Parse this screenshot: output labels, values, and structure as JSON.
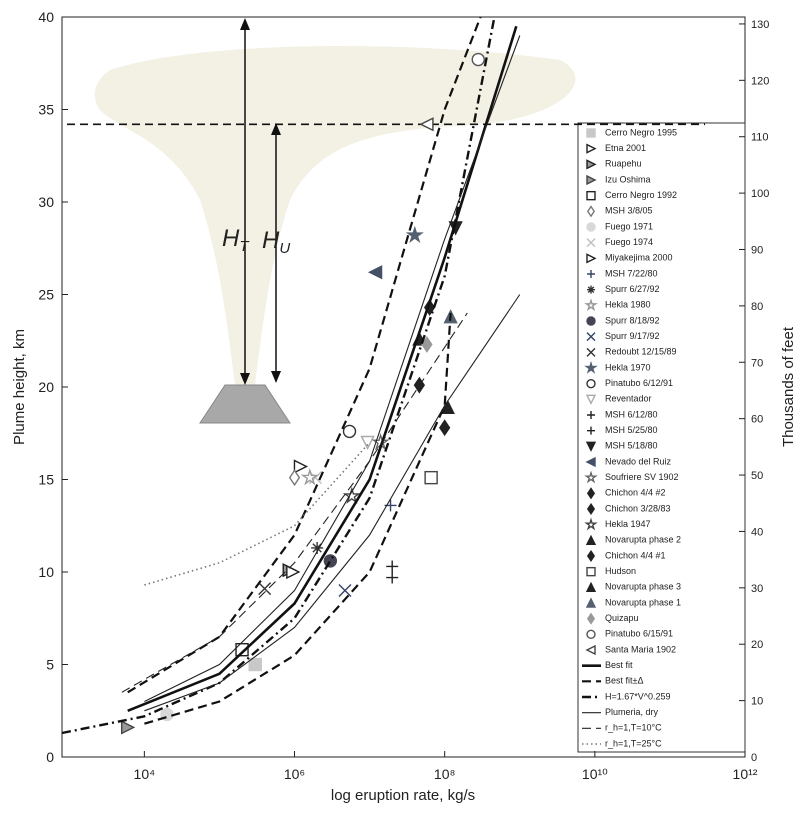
{
  "chart_data": {
    "type": "scatter",
    "x_label": "log eruption rate, kg/s",
    "y_label": "Plume height, km",
    "y2_label": "Thousands of feet",
    "log_x": true,
    "grid": false,
    "xlim": [
      800,
      1000000000000
    ],
    "xticks": [
      {
        "value": 10000,
        "label": "10⁴"
      },
      {
        "value": 1000000,
        "label": "10⁶"
      },
      {
        "value": 100000000,
        "label": "10⁸"
      },
      {
        "value": 10000000000,
        "label": "10¹⁰"
      },
      {
        "value": 1000000000000,
        "label": "10¹²"
      }
    ],
    "ylim": [
      0,
      40
    ],
    "yticks": [
      0,
      5,
      10,
      15,
      20,
      25,
      30,
      35,
      40
    ],
    "y2lim": [
      0,
      131.23
    ],
    "y2ticks": [
      0,
      10,
      20,
      30,
      40,
      50,
      60,
      70,
      80,
      90,
      100,
      110,
      120,
      130
    ],
    "hline": 34.2,
    "annotations": [
      {
        "text": "H",
        "sub": "T"
      },
      {
        "text": "H",
        "sub": "U"
      }
    ],
    "legend_position": "right",
    "series": [
      {
        "name": "Cerro Negro 1995",
        "marker": "square",
        "fill": "filled",
        "color": "#c8c8c8",
        "x": [
          300000
        ],
        "values": [
          5.0
        ]
      },
      {
        "name": "Etna 2001",
        "marker": "tri-right",
        "fill": "open",
        "color": "#222222",
        "x": [
          1200000
        ],
        "values": [
          15.7
        ]
      },
      {
        "name": "Ruapehu",
        "marker": "tri-right",
        "fill": "half",
        "color": "#222222",
        "x": [
          850000
        ],
        "values": [
          10.1
        ]
      },
      {
        "name": "Izu Oshima",
        "marker": "tri-right",
        "fill": "half",
        "color": "#444444",
        "x": [
          6000
        ],
        "values": [
          1.6
        ]
      },
      {
        "name": "Cerro Negro 1992",
        "marker": "square",
        "fill": "open",
        "color": "#222222",
        "x": [
          200000
        ],
        "values": [
          5.8
        ]
      },
      {
        "name": "MSH 3/8/05",
        "marker": "diamond",
        "fill": "open",
        "color": "#777777",
        "x": [
          1000000
        ],
        "values": [
          15.1
        ]
      },
      {
        "name": "Fuego 1971",
        "marker": "circle",
        "fill": "filled",
        "color": "#d8d8d8",
        "x": [
          20000
        ],
        "values": [
          2.3
        ]
      },
      {
        "name": "Fuego 1974",
        "marker": "x",
        "fill": "open",
        "color": "#c0c0c0",
        "x": [
          1900000
        ],
        "values": [
          15.1
        ]
      },
      {
        "name": "Miyakejima 2000",
        "marker": "tri-right",
        "fill": "open",
        "color": "#222222",
        "x": [
          950000
        ],
        "values": [
          10.0
        ]
      },
      {
        "name": "MSH 7/22/80",
        "marker": "plus",
        "fill": "open",
        "color": "#334466",
        "x": [
          19000000
        ],
        "values": [
          13.6
        ]
      },
      {
        "name": "Spurr 6/27/92",
        "marker": "asterisk",
        "fill": "open",
        "color": "#333333",
        "x": [
          2000000
        ],
        "values": [
          11.3
        ]
      },
      {
        "name": "Hekla 1980",
        "marker": "star",
        "fill": "open",
        "color": "#999999",
        "x": [
          1600000
        ],
        "values": [
          15.1
        ]
      },
      {
        "name": "Spurr 8/18/92",
        "marker": "circle",
        "fill": "filled",
        "color": "#444455",
        "x": [
          3000000
        ],
        "values": [
          10.6
        ]
      },
      {
        "name": "Spurr 9/17/92",
        "marker": "x",
        "fill": "open",
        "color": "#334466",
        "x": [
          4700000
        ],
        "values": [
          9.0
        ]
      },
      {
        "name": "Redoubt 12/15/89",
        "marker": "x",
        "fill": "open",
        "color": "#333333",
        "x": [
          400000
        ],
        "values": [
          9.1
        ]
      },
      {
        "name": "Hekla 1970",
        "marker": "star",
        "fill": "filled",
        "color": "#556070",
        "x": [
          40000000
        ],
        "values": [
          28.2
        ]
      },
      {
        "name": "Pinatubo 6/12/91",
        "marker": "circle",
        "fill": "open",
        "color": "#333333",
        "x": [
          5400000
        ],
        "values": [
          17.6
        ]
      },
      {
        "name": "Reventador",
        "marker": "tri-down",
        "fill": "open",
        "color": "#aaaaaa",
        "x": [
          9400000
        ],
        "values": [
          17.0
        ]
      },
      {
        "name": "MSH 6/12/80",
        "marker": "plus",
        "fill": "open",
        "color": "#222222",
        "x": [
          20000000
        ],
        "values": [
          9.7
        ]
      },
      {
        "name": "MSH 5/25/80",
        "marker": "plus",
        "fill": "open",
        "color": "#222222",
        "x": [
          20000000
        ],
        "values": [
          10.3
        ]
      },
      {
        "name": "MSH 5/18/80",
        "marker": "tri-down",
        "fill": "filled",
        "color": "#222222",
        "x": [
          140000000
        ],
        "values": [
          28.6
        ]
      },
      {
        "name": "Nevado del Ruiz",
        "marker": "tri-left",
        "fill": "filled",
        "color": "#445066",
        "x": [
          12000000
        ],
        "values": [
          26.2
        ]
      },
      {
        "name": "Soufriere SV 1902",
        "marker": "star",
        "fill": "open",
        "color": "#666666",
        "x": [
          14000000
        ],
        "values": [
          17.0
        ]
      },
      {
        "name": "Chichon 4/4 #2",
        "marker": "diamond",
        "fill": "filled",
        "color": "#222222",
        "x": [
          46000000
        ],
        "values": [
          20.1
        ]
      },
      {
        "name": "Chichon 3/28/83",
        "marker": "diamond",
        "fill": "filled",
        "color": "#222222",
        "x": [
          63000000
        ],
        "values": [
          24.3
        ]
      },
      {
        "name": "Hekla 1947",
        "marker": "star",
        "fill": "open",
        "color": "#444444",
        "x": [
          5800000
        ],
        "values": [
          14.1
        ]
      },
      {
        "name": "Novarupta phase 2",
        "marker": "tri-up",
        "fill": "filled",
        "color": "#222222",
        "x": [
          46000000
        ],
        "values": [
          22.6
        ]
      },
      {
        "name": "Chichon 4/4 #1",
        "marker": "diamond",
        "fill": "filled",
        "color": "#222222",
        "x": [
          100000000
        ],
        "values": [
          17.8
        ]
      },
      {
        "name": "Hudson",
        "marker": "square",
        "fill": "open",
        "color": "#444444",
        "x": [
          66000000
        ],
        "values": [
          15.1
        ]
      },
      {
        "name": "Novarupta phase 3",
        "marker": "tri-up",
        "fill": "filled",
        "color": "#222222",
        "x": [
          110000000
        ],
        "values": [
          18.9
        ]
      },
      {
        "name": "Novarupta phase 1",
        "marker": "tri-up",
        "fill": "filled",
        "color": "#556070",
        "x": [
          120000000
        ],
        "values": [
          23.8
        ]
      },
      {
        "name": "Quizapu",
        "marker": "diamond",
        "fill": "filled",
        "color": "#999999",
        "x": [
          58000000
        ],
        "values": [
          22.3
        ]
      },
      {
        "name": "Pinatubo 6/15/91",
        "marker": "circle",
        "fill": "open",
        "color": "#555555",
        "x": [
          280000000
        ],
        "values": [
          37.7
        ]
      },
      {
        "name": "Santa Maria 1902",
        "marker": "tri-left",
        "fill": "open",
        "color": "#444444",
        "x": [
          58000000
        ],
        "values": [
          34.2
        ]
      },
      {
        "name": "Best fit",
        "style": "solid",
        "width": 2.6,
        "color": "#111111",
        "lines": [
          {
            "x": [
              6000,
              100000,
              1000000,
              10000000,
              100000000,
              900000000
            ],
            "values": [
              2.5,
              4.5,
              8.3,
              15,
              27,
              39.5
            ]
          }
        ]
      },
      {
        "name": "Best fit±Δ",
        "style": "dashed",
        "width": 2.2,
        "color": "#111111",
        "lines": [
          {
            "x": [
              6000,
              100000,
              1000000,
              10000000,
              100000000,
              300000000
            ],
            "values": [
              3.5,
              6.5,
              12,
              21,
              35,
              40
            ]
          },
          {
            "x": [
              10000,
              100000,
              1000000,
              10000000,
              100000000,
              120000000
            ],
            "values": [
              1.8,
              3,
              5.5,
              10,
              19,
              24
            ]
          }
        ]
      },
      {
        "name": "H=1.67*V^0.259",
        "style": "dashdot",
        "width": 2.4,
        "color": "#111111",
        "lines": [
          {
            "x": [
              800,
              10000,
              100000,
              1000000,
              10000000,
              100000000,
              460000000
            ],
            "values": [
              1.3,
              2.2,
              4,
              7.5,
              14,
              26,
              40
            ]
          }
        ]
      },
      {
        "name": "Plumeria, dry",
        "style": "solid",
        "width": 1.1,
        "color": "#222222",
        "lines": [
          {
            "x": [
              10000,
              100000,
              1000000,
              10000000,
              100000000,
              1000000000
            ],
            "values": [
              2.5,
              4,
              7,
              12,
              19,
              25
            ]
          },
          {
            "x": [
              10000,
              100000,
              1000000,
              10000000,
              100000000,
              1000000000
            ],
            "values": [
              3,
              5,
              9,
              16,
              28,
              39
            ]
          }
        ]
      },
      {
        "name": "r_h=1,T=10°C",
        "style": "dashed",
        "width": 1.1,
        "color": "#222222",
        "lines": [
          {
            "x": [
              5000,
              100000,
              1000000,
              10000000,
              200000000
            ],
            "values": [
              3.5,
              6.5,
              10.5,
              16,
              24
            ]
          }
        ]
      },
      {
        "name": "r_h=1,T=25°C",
        "style": "dotted",
        "width": 1.6,
        "color": "#777777",
        "lines": [
          {
            "x": [
              10000,
              100000,
              1000000,
              10000000
            ],
            "values": [
              9.3,
              10.5,
              12.5,
              17
            ]
          }
        ]
      }
    ]
  }
}
